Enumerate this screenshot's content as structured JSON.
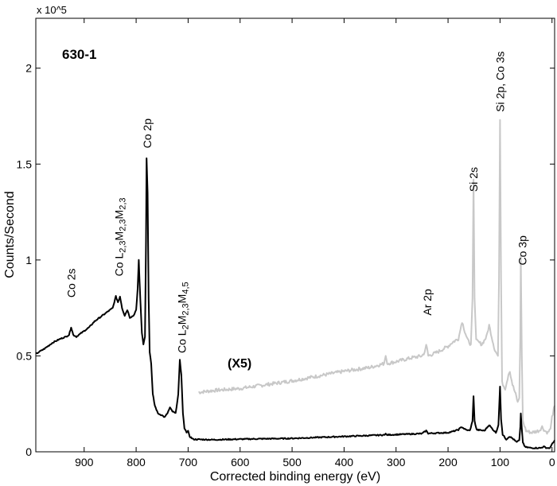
{
  "chart_data": {
    "type": "line",
    "title": "630-1",
    "xlabel": "Corrected binding energy (eV)",
    "ylabel": "Counts/Second",
    "y_multiplier": "x 10^5",
    "y_multiplier_base": "x 10",
    "y_multiplier_exp": "5",
    "xlim": [
      993,
      -5
    ],
    "ylim": [
      0,
      2.26
    ],
    "x_reversed": true,
    "grid": false,
    "x_ticks": [
      900,
      800,
      700,
      600,
      500,
      400,
      300,
      200,
      100,
      0
    ],
    "y_ticks": [
      0,
      0.5,
      1,
      1.5,
      2
    ],
    "y_tick_labels": [
      "0",
      "0.5",
      "1",
      "1.5",
      "2"
    ],
    "scale_note": "(X5)",
    "series": [
      {
        "color": "#000000",
        "points": [
          [
            993,
            0.51
          ],
          [
            975,
            0.54
          ],
          [
            960,
            0.57
          ],
          [
            945,
            0.59
          ],
          [
            935,
            0.6
          ],
          [
            929,
            0.61
          ],
          [
            925,
            0.65
          ],
          [
            921,
            0.61
          ],
          [
            915,
            0.6
          ],
          [
            900,
            0.63
          ],
          [
            890,
            0.65
          ],
          [
            880,
            0.68
          ],
          [
            870,
            0.7
          ],
          [
            860,
            0.72
          ],
          [
            850,
            0.74
          ],
          [
            845,
            0.75
          ],
          [
            839,
            0.81
          ],
          [
            835,
            0.78
          ],
          [
            831,
            0.81
          ],
          [
            827,
            0.75
          ],
          [
            822,
            0.71
          ],
          [
            817,
            0.74
          ],
          [
            812,
            0.7
          ],
          [
            805,
            0.71
          ],
          [
            800,
            0.74
          ],
          [
            797,
            0.85
          ],
          [
            795,
            1.0
          ],
          [
            792,
            0.8
          ],
          [
            789,
            0.62
          ],
          [
            786,
            0.56
          ],
          [
            783,
            0.6
          ],
          [
            781,
            1.1
          ],
          [
            780,
            1.53
          ],
          [
            778,
            1.35
          ],
          [
            776,
            0.8
          ],
          [
            774,
            0.52
          ],
          [
            771,
            0.46
          ],
          [
            768,
            0.3
          ],
          [
            764,
            0.24
          ],
          [
            758,
            0.2
          ],
          [
            750,
            0.19
          ],
          [
            745,
            0.18
          ],
          [
            740,
            0.2
          ],
          [
            735,
            0.23
          ],
          [
            730,
            0.21
          ],
          [
            724,
            0.2
          ],
          [
            719,
            0.3
          ],
          [
            716,
            0.48
          ],
          [
            713,
            0.4
          ],
          [
            710,
            0.2
          ],
          [
            707,
            0.12
          ],
          [
            703,
            0.1
          ],
          [
            700,
            0.11
          ],
          [
            697,
            0.08
          ],
          [
            690,
            0.065
          ],
          [
            650,
            0.063
          ],
          [
            600,
            0.066
          ],
          [
            550,
            0.068
          ],
          [
            500,
            0.07
          ],
          [
            450,
            0.075
          ],
          [
            400,
            0.08
          ],
          [
            350,
            0.085
          ],
          [
            322,
            0.088
          ],
          [
            320,
            0.095
          ],
          [
            318,
            0.088
          ],
          [
            280,
            0.092
          ],
          [
            250,
            0.095
          ],
          [
            242,
            0.11
          ],
          [
            238,
            0.096
          ],
          [
            200,
            0.1
          ],
          [
            192,
            0.105
          ],
          [
            180,
            0.115
          ],
          [
            174,
            0.13
          ],
          [
            166,
            0.115
          ],
          [
            158,
            0.11
          ],
          [
            153,
            0.16
          ],
          [
            151,
            0.29
          ],
          [
            149,
            0.16
          ],
          [
            145,
            0.115
          ],
          [
            130,
            0.11
          ],
          [
            121,
            0.14
          ],
          [
            115,
            0.12
          ],
          [
            108,
            0.1
          ],
          [
            103,
            0.14
          ],
          [
            100,
            0.34
          ],
          [
            98,
            0.17
          ],
          [
            95,
            0.09
          ],
          [
            88,
            0.065
          ],
          [
            82,
            0.08
          ],
          [
            76,
            0.07
          ],
          [
            68,
            0.05
          ],
          [
            63,
            0.06
          ],
          [
            61,
            0.13
          ],
          [
            60,
            0.2
          ],
          [
            58,
            0.12
          ],
          [
            56,
            0.05
          ],
          [
            52,
            0.025
          ],
          [
            40,
            0.02
          ],
          [
            22,
            0.02
          ],
          [
            16,
            0.027
          ],
          [
            10,
            0.02
          ],
          [
            4,
            0.02
          ],
          [
            1,
            0.035
          ],
          [
            -5,
            0.06
          ]
        ]
      },
      {
        "color": "#c8c8c8",
        "scale_factor": 5,
        "points": [
          [
            680,
            0.31
          ],
          [
            650,
            0.32
          ],
          [
            600,
            0.33
          ],
          [
            550,
            0.35
          ],
          [
            500,
            0.37
          ],
          [
            450,
            0.395
          ],
          [
            400,
            0.42
          ],
          [
            350,
            0.44
          ],
          [
            323,
            0.46
          ],
          [
            320,
            0.5
          ],
          [
            317,
            0.46
          ],
          [
            300,
            0.47
          ],
          [
            270,
            0.49
          ],
          [
            250,
            0.5
          ],
          [
            245,
            0.52
          ],
          [
            242,
            0.56
          ],
          [
            238,
            0.5
          ],
          [
            220,
            0.52
          ],
          [
            200,
            0.55
          ],
          [
            192,
            0.57
          ],
          [
            180,
            0.59
          ],
          [
            176,
            0.64
          ],
          [
            173,
            0.68
          ],
          [
            168,
            0.63
          ],
          [
            162,
            0.58
          ],
          [
            156,
            0.56
          ],
          [
            153,
            0.8
          ],
          [
            151,
            1.42
          ],
          [
            149,
            0.8
          ],
          [
            146,
            0.58
          ],
          [
            135,
            0.56
          ],
          [
            126,
            0.6
          ],
          [
            121,
            0.66
          ],
          [
            116,
            0.6
          ],
          [
            110,
            0.53
          ],
          [
            104,
            0.5
          ],
          [
            102,
            0.9
          ],
          [
            100,
            1.73
          ],
          [
            98,
            0.9
          ],
          [
            96,
            0.36
          ],
          [
            90,
            0.33
          ],
          [
            84,
            0.4
          ],
          [
            81,
            0.42
          ],
          [
            76,
            0.35
          ],
          [
            70,
            0.3
          ],
          [
            66,
            0.26
          ],
          [
            63,
            0.28
          ],
          [
            61,
            0.6
          ],
          [
            60,
            1.02
          ],
          [
            58,
            0.5
          ],
          [
            56,
            0.16
          ],
          [
            50,
            0.11
          ],
          [
            40,
            0.1
          ],
          [
            25,
            0.11
          ],
          [
            19,
            0.13
          ],
          [
            14,
            0.11
          ],
          [
            8,
            0.1
          ],
          [
            3,
            0.12
          ],
          [
            0,
            0.18
          ],
          [
            -5,
            0.24
          ]
        ]
      }
    ],
    "annotations": [
      {
        "x": 925,
        "y": 0.88,
        "parts": [
          {
            "t": "Co 2s"
          }
        ]
      },
      {
        "x": 833,
        "y": 1.12,
        "parts": [
          {
            "t": "Co L"
          },
          {
            "t": "2,3",
            "sub": true
          },
          {
            "t": "M"
          },
          {
            "t": "2,3",
            "sub": true
          },
          {
            "t": "M"
          },
          {
            "t": "2,3",
            "sub": true
          }
        ]
      },
      {
        "x": 779,
        "y": 1.66,
        "parts": [
          {
            "t": "Co 2p"
          }
        ]
      },
      {
        "x": 712,
        "y": 0.7,
        "parts": [
          {
            "t": "Co L"
          },
          {
            "t": "2",
            "sub": true
          },
          {
            "t": "M"
          },
          {
            "t": "2,3",
            "sub": true
          },
          {
            "t": "M"
          },
          {
            "t": "4,5",
            "sub": true
          }
        ]
      },
      {
        "x": 240,
        "y": 0.78,
        "parts": [
          {
            "t": "Ar 2p"
          }
        ]
      },
      {
        "x": 151,
        "y": 1.42,
        "parts": [
          {
            "t": "Si 2s"
          }
        ]
      },
      {
        "x": 100,
        "y": 1.93,
        "parts": [
          {
            "t": "Si 2p, Co 3s"
          }
        ]
      },
      {
        "x": 57,
        "y": 1.05,
        "parts": [
          {
            "t": "Co 3p"
          }
        ]
      }
    ]
  }
}
